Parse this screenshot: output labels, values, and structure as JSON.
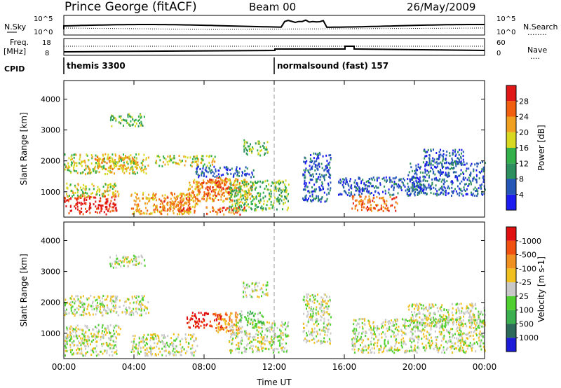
{
  "header": {
    "station": "Prince George (fitACF)",
    "beam": "Beam 00",
    "date": "26/May/2009"
  },
  "labels": {
    "nsky": "N.Sky",
    "nsearch": "N.Search",
    "freq": "Freq.",
    "mhz": "[MHz]",
    "nave": "Nave",
    "cpid": "CPID",
    "dots": "........",
    "dots_short": "....",
    "ns_tick_top": "10^5",
    "ns_tick_bottom": "10^0",
    "freq_tick_top": "18",
    "freq_tick_bottom": "8",
    "nave_tick_top": "60",
    "nave_tick_bottom": "0"
  },
  "cpid_segments": [
    {
      "start_hour": 0,
      "label": "themis 3300"
    },
    {
      "start_hour": 12,
      "label": "normalsound (fast) 157"
    }
  ],
  "chart_data": [
    {
      "type": "heatmap",
      "title": "",
      "xlabel": "",
      "ylabel": "Slant Range [km]",
      "xlim": [
        0,
        24
      ],
      "ylim": [
        180,
        4600
      ],
      "x_ticks": [
        0,
        4,
        8,
        12,
        16,
        20,
        24
      ],
      "y_ticks": [
        1000,
        2000,
        3000,
        4000
      ],
      "colorbar": {
        "label": "Power [dB]",
        "tick_labels": [
          "4",
          "8",
          "12",
          "16",
          "20",
          "24",
          "28"
        ],
        "colors": [
          "#1c1cf0",
          "#2456b8",
          "#2e8f5e",
          "#34b04a",
          "#d8d820",
          "#f0a020",
          "#f06010",
          "#e01818"
        ]
      },
      "regions": [
        {
          "x": [
            0.0,
            3.0
          ],
          "range": [
            300,
            900
          ],
          "level": 7
        },
        {
          "x": [
            0.1,
            3.1
          ],
          "range": [
            850,
            1300
          ],
          "level": 4
        },
        {
          "x": [
            0.0,
            4.8
          ],
          "range": [
            1600,
            2250
          ],
          "level": 4
        },
        {
          "x": [
            1.6,
            4.2
          ],
          "range": [
            1750,
            2150
          ],
          "level": 5
        },
        {
          "x": [
            2.6,
            4.6
          ],
          "range": [
            3150,
            3550
          ],
          "level": 3
        },
        {
          "x": [
            3.8,
            7.6
          ],
          "range": [
            300,
            1000
          ],
          "level": 5
        },
        {
          "x": [
            5.4,
            7.2
          ],
          "range": [
            400,
            900
          ],
          "level": 6
        },
        {
          "x": [
            7.0,
            10.8
          ],
          "range": [
            700,
            1450
          ],
          "level": 5
        },
        {
          "x": [
            7.8,
            9.4
          ],
          "range": [
            900,
            1500
          ],
          "level": 6
        },
        {
          "x": [
            8.0,
            10.4
          ],
          "range": [
            280,
            550
          ],
          "level": 6
        },
        {
          "x": [
            5.2,
            8.6
          ],
          "range": [
            1850,
            2200
          ],
          "level": 4
        },
        {
          "x": [
            7.5,
            10.8
          ],
          "range": [
            1500,
            1850
          ],
          "level": 1
        },
        {
          "x": [
            9.4,
            12.8
          ],
          "range": [
            400,
            1400
          ],
          "level": 3
        },
        {
          "x": [
            10.2,
            11.6
          ],
          "range": [
            2200,
            2700
          ],
          "level": 3
        },
        {
          "x": [
            13.6,
            15.2
          ],
          "range": [
            700,
            2300
          ],
          "level": 1
        },
        {
          "x": [
            15.6,
            20.4
          ],
          "range": [
            900,
            1500
          ],
          "level": 1
        },
        {
          "x": [
            16.4,
            19.0
          ],
          "range": [
            400,
            900
          ],
          "level": 6
        },
        {
          "x": [
            19.6,
            24.0
          ],
          "range": [
            900,
            2000
          ],
          "level": 1
        },
        {
          "x": [
            20.5,
            22.8
          ],
          "range": [
            1900,
            2400
          ],
          "level": 1
        }
      ]
    },
    {
      "type": "heatmap",
      "title": "",
      "xlabel": "Time UT",
      "ylabel": "Slant Range [km]",
      "xlim": [
        0,
        24
      ],
      "ylim": [
        180,
        4600
      ],
      "x_ticks": [
        0,
        4,
        8,
        12,
        16,
        20,
        24
      ],
      "x_tick_labels": [
        "00:00",
        "04:00",
        "08:00",
        "12:00",
        "16:00",
        "20:00",
        "00:00"
      ],
      "y_ticks": [
        1000,
        2000,
        3000,
        4000
      ],
      "colorbar": {
        "label": "Velocity [m s-1]",
        "tick_labels": [
          "1000",
          "500",
          "100",
          "25",
          "-25",
          "-100",
          "-500",
          "-1000"
        ],
        "colors": [
          "#1c1cd8",
          "#2e6a5a",
          "#3cb050",
          "#50d030",
          "#c8c8c8",
          "#f0c020",
          "#f09020",
          "#f05010",
          "#e01010"
        ]
      },
      "regions": [
        {
          "x": [
            0.0,
            3.0
          ],
          "range": [
            300,
            950
          ],
          "level": 4
        },
        {
          "x": [
            0.1,
            3.2
          ],
          "range": [
            850,
            1300
          ],
          "level": 4
        },
        {
          "x": [
            0.0,
            4.8
          ],
          "range": [
            1600,
            2250
          ],
          "level": 4
        },
        {
          "x": [
            2.6,
            4.6
          ],
          "range": [
            3150,
            3550
          ],
          "level": 4
        },
        {
          "x": [
            3.8,
            7.6
          ],
          "range": [
            300,
            1000
          ],
          "level": 4
        },
        {
          "x": [
            7.0,
            9.0
          ],
          "range": [
            1200,
            1700
          ],
          "level": 8
        },
        {
          "x": [
            8.6,
            10.0
          ],
          "range": [
            1000,
            1700
          ],
          "level": 6
        },
        {
          "x": [
            10.0,
            11.4
          ],
          "range": [
            1300,
            1750
          ],
          "level": 3
        },
        {
          "x": [
            9.4,
            12.8
          ],
          "range": [
            400,
            1400
          ],
          "level": 4
        },
        {
          "x": [
            10.2,
            11.6
          ],
          "range": [
            2200,
            2700
          ],
          "level": 4
        },
        {
          "x": [
            16.4,
            24.0
          ],
          "range": [
            400,
            1500
          ],
          "level": 4
        },
        {
          "x": [
            19.6,
            24.0
          ],
          "range": [
            1200,
            2000
          ],
          "level": 4
        },
        {
          "x": [
            13.6,
            15.2
          ],
          "range": [
            700,
            2300
          ],
          "level": 4
        }
      ]
    }
  ]
}
